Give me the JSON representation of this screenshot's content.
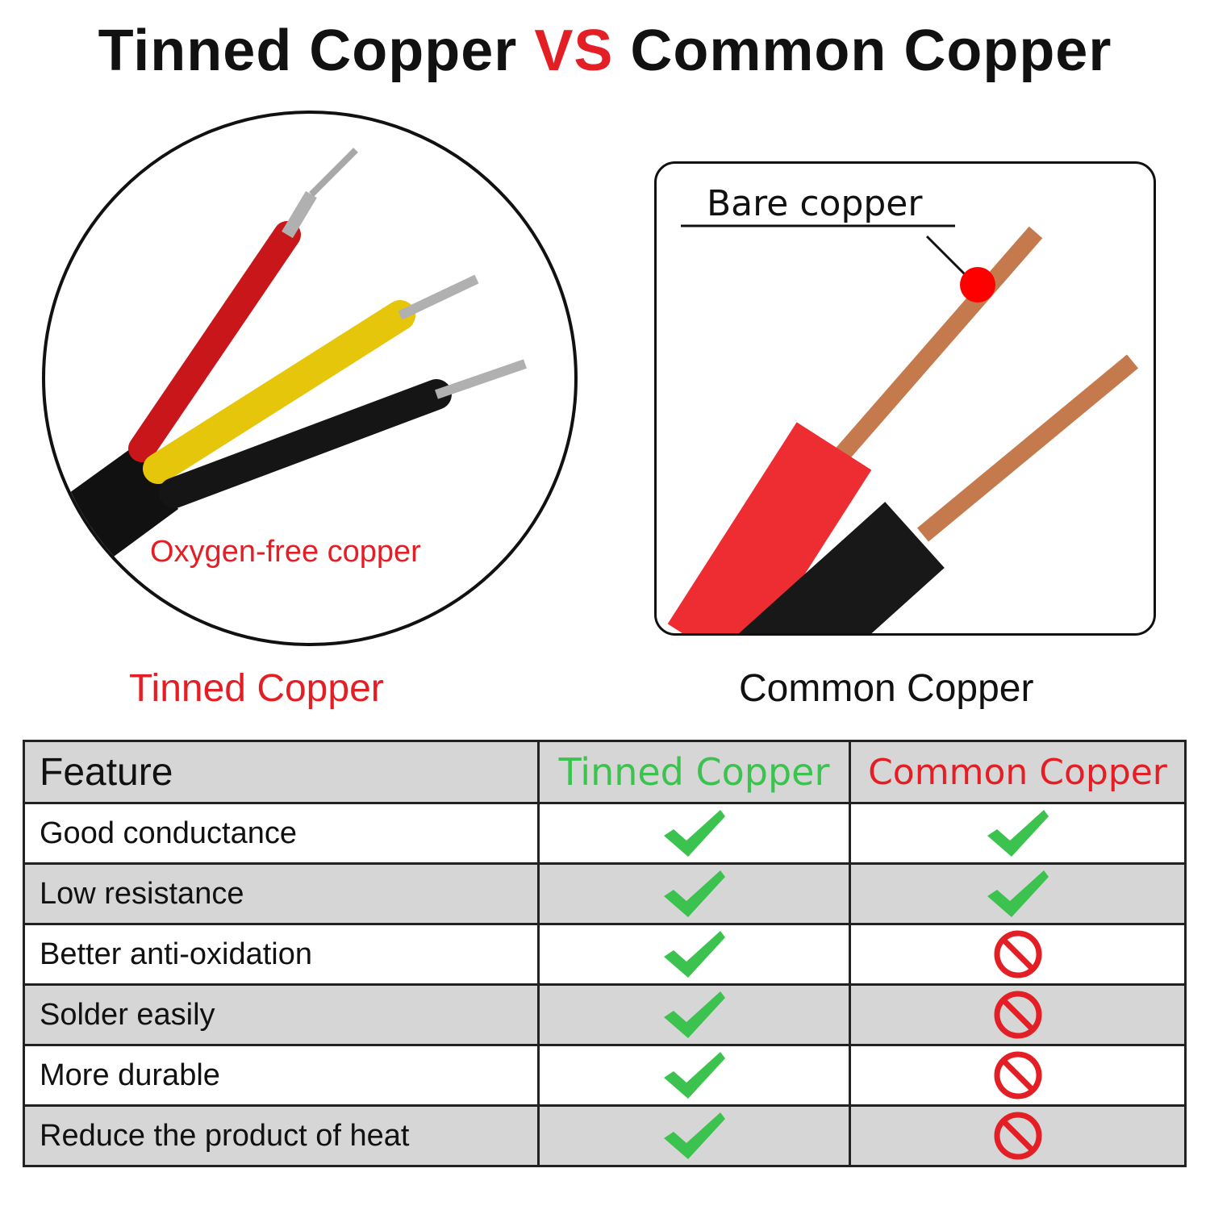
{
  "title": {
    "part1": "Tinned Copper",
    "vs": "VS",
    "part2": "Common Copper"
  },
  "left_image": {
    "label": "Oxygen-free copper",
    "caption": "Tinned Copper"
  },
  "right_image": {
    "label": "Bare copper",
    "caption": "Common Copper"
  },
  "colors": {
    "accent_red": "#e41e25",
    "check_green": "#3cc24f",
    "row_gray": "#d6d6d6"
  },
  "table": {
    "headers": [
      "Feature",
      "Tinned Copper",
      "Common Copper"
    ],
    "rows": [
      {
        "feature": "Good conductance",
        "tinned": "check-icon",
        "common": "check-icon"
      },
      {
        "feature": "Low resistance",
        "tinned": "check-icon",
        "common": "check-icon"
      },
      {
        "feature": "Better anti-oxidation",
        "tinned": "check-icon",
        "common": "prohibited-icon"
      },
      {
        "feature": "Solder easily",
        "tinned": "check-icon",
        "common": "prohibited-icon"
      },
      {
        "feature": "More durable",
        "tinned": "check-icon",
        "common": "prohibited-icon"
      },
      {
        "feature": "Reduce the product of heat",
        "tinned": "check-icon",
        "common": "prohibited-icon"
      }
    ]
  }
}
